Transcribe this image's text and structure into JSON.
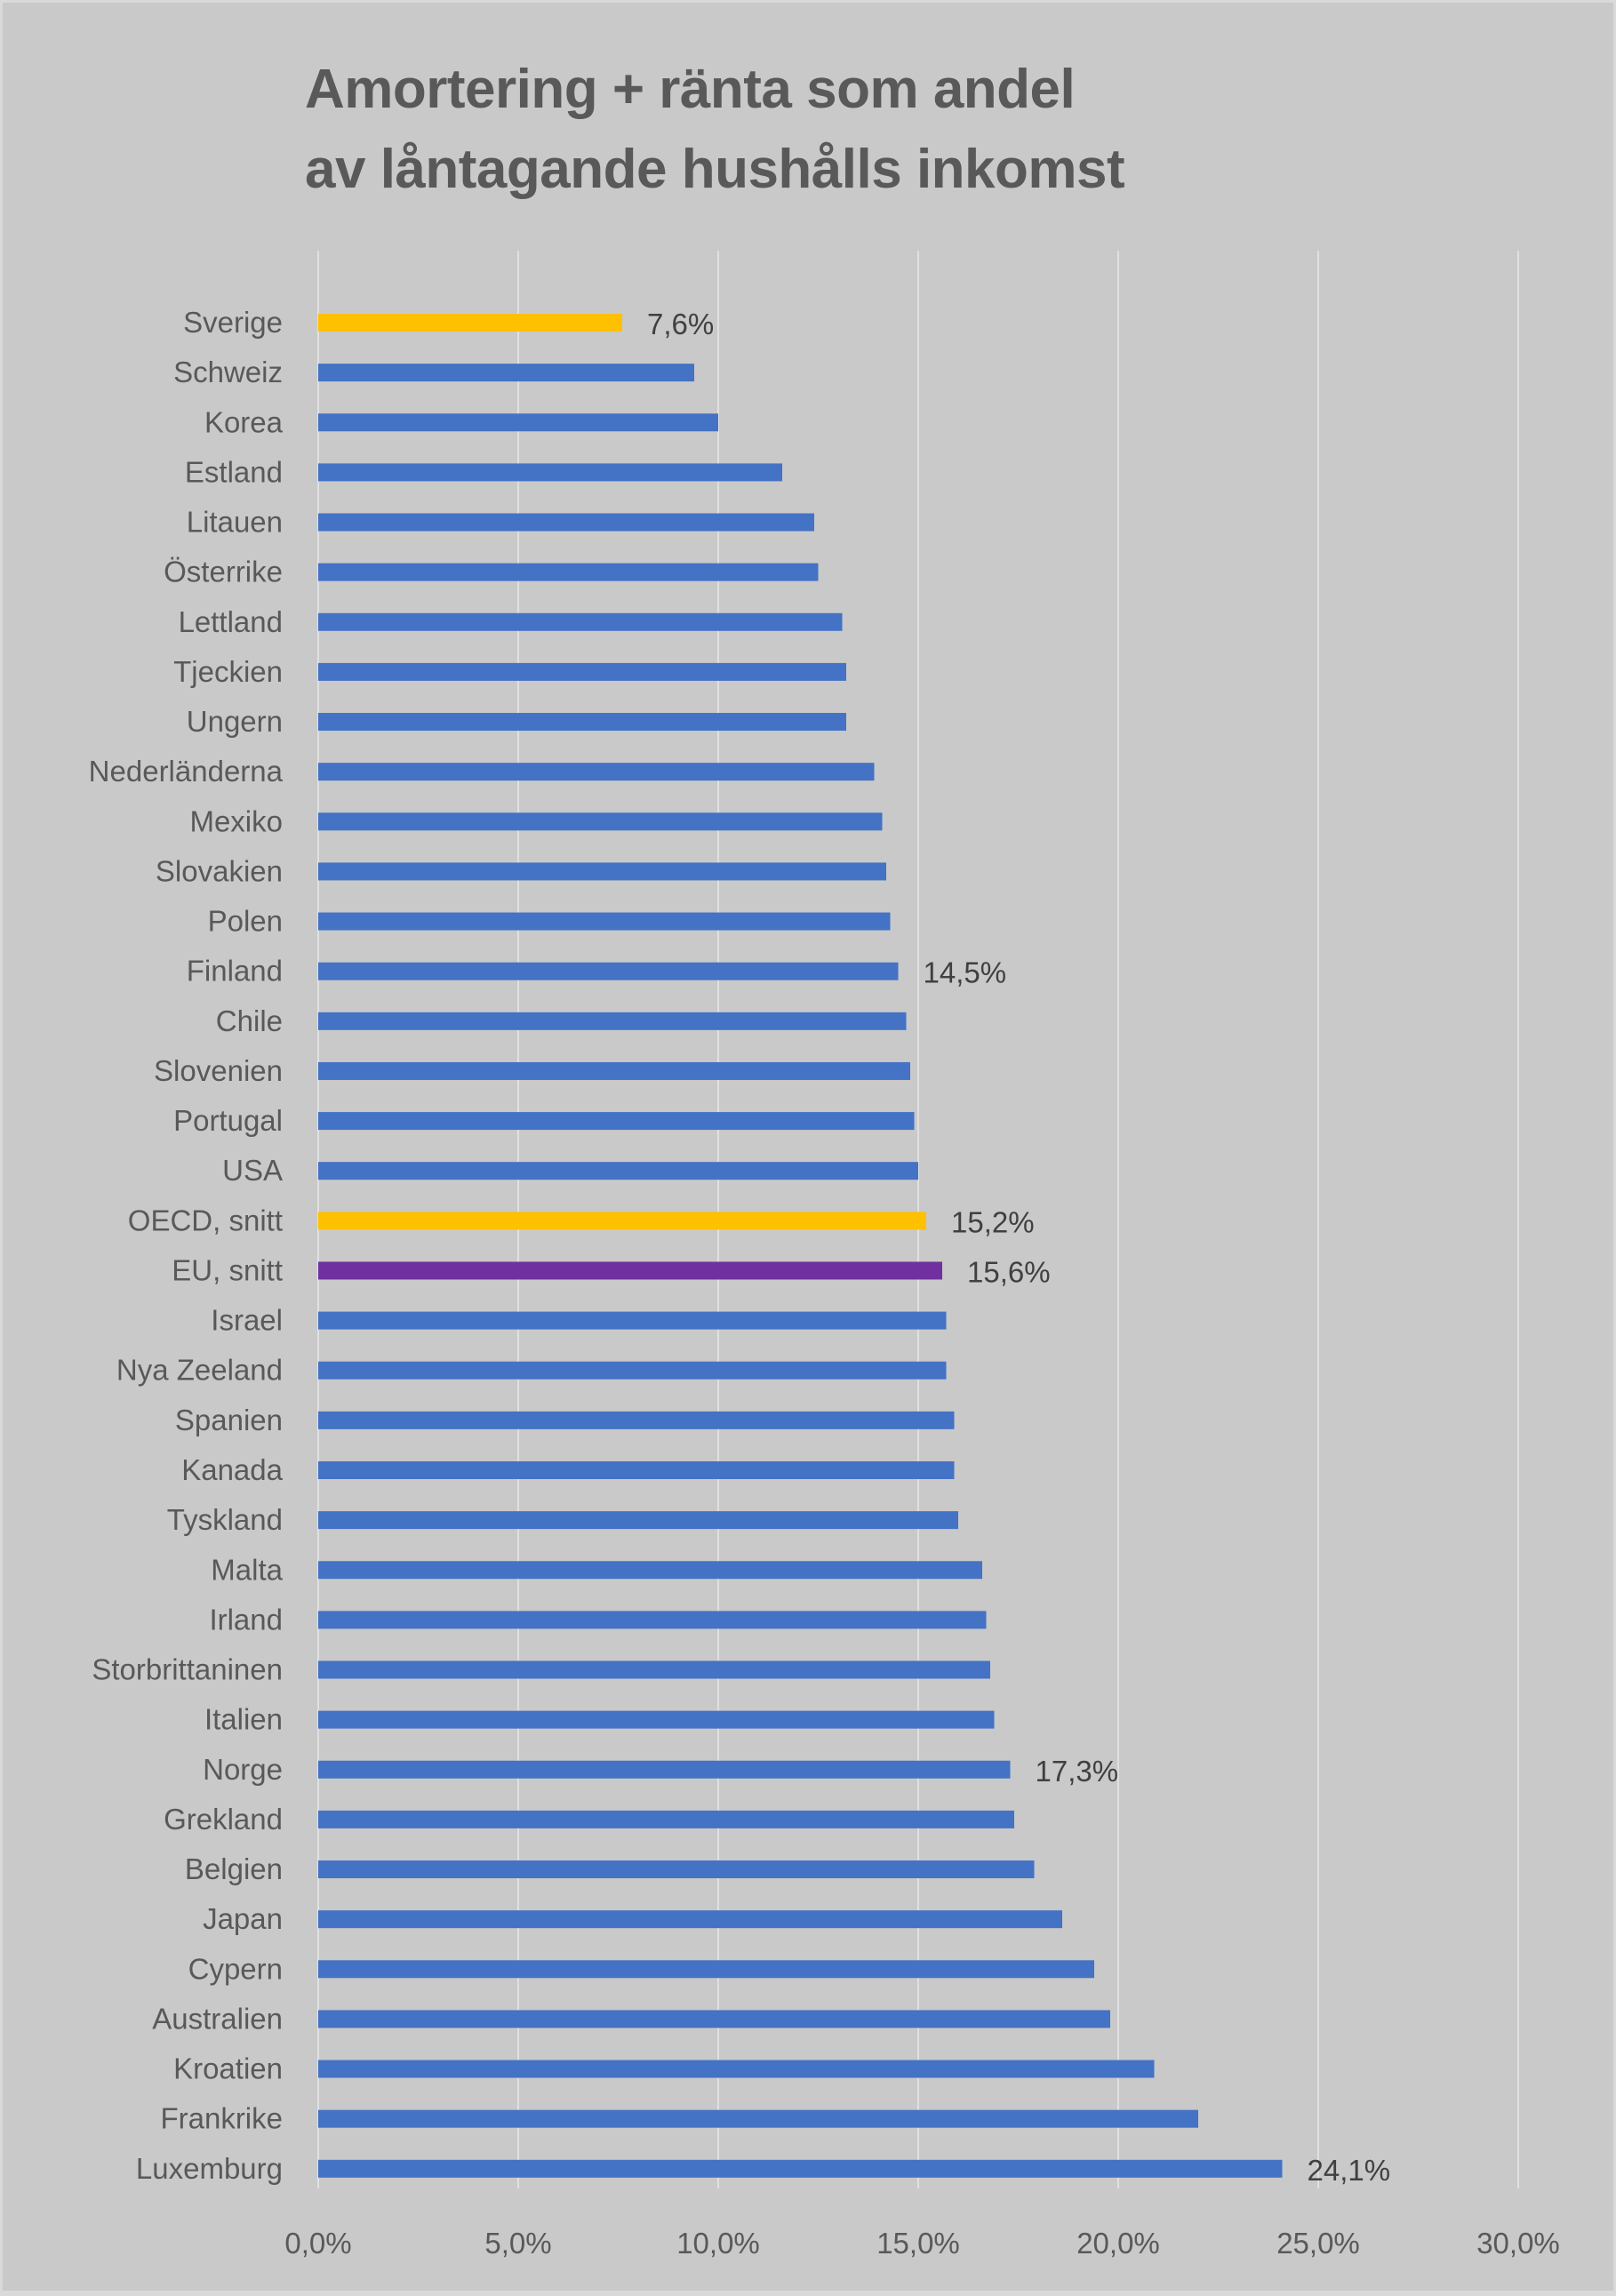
{
  "chart_data": {
    "type": "bar",
    "orientation": "horizontal",
    "title": "Amortering + ränta som andel av låntagande hushålls inkomst",
    "title_lines": [
      "Amortering + ränta som andel",
      "av låntagande hushålls inkomst"
    ],
    "xlabel": "",
    "ylabel": "",
    "xlim": [
      0,
      30
    ],
    "x_ticks": [
      0,
      5,
      10,
      15,
      20,
      25,
      30
    ],
    "x_tick_labels": [
      "0,0%",
      "5,0%",
      "10,0%",
      "15,0%",
      "20,0%",
      "25,0%",
      "30,0%"
    ],
    "grid": "vertical",
    "legend": "none",
    "colors": {
      "default": "#4472C4",
      "highlight_yellow": "#FFC000",
      "highlight_purple": "#7030A0",
      "background": "#C9C9C9",
      "gridline": "#E0E0E0",
      "text": "#595959"
    },
    "categories": [
      "Sverige",
      "Schweiz",
      "Korea",
      "Estland",
      "Litauen",
      "Österrike",
      "Lettland",
      "Tjeckien",
      "Ungern",
      "Nederländerna",
      "Mexiko",
      "Slovakien",
      "Polen",
      "Finland",
      "Chile",
      "Slovenien",
      "Portugal",
      "USA",
      "OECD, snitt",
      "EU, snitt",
      "Israel",
      "Nya Zeeland",
      "Spanien",
      "Kanada",
      "Tyskland",
      "Malta",
      "Irland",
      "Storbrittaninen",
      "Italien",
      "Norge",
      "Grekland",
      "Belgien",
      "Japan",
      "Cypern",
      "Australien",
      "Kroatien",
      "Frankrike",
      "Luxemburg"
    ],
    "values": [
      7.6,
      9.4,
      10.0,
      11.6,
      12.4,
      12.5,
      13.1,
      13.2,
      13.2,
      13.9,
      14.1,
      14.2,
      14.3,
      14.5,
      14.7,
      14.8,
      14.9,
      15.0,
      15.2,
      15.6,
      15.7,
      15.7,
      15.9,
      15.9,
      16.0,
      16.6,
      16.7,
      16.8,
      16.9,
      17.3,
      17.4,
      17.9,
      18.6,
      19.4,
      19.8,
      20.9,
      22.0,
      24.1
    ],
    "bar_colors": [
      "highlight_yellow",
      "default",
      "default",
      "default",
      "default",
      "default",
      "default",
      "default",
      "default",
      "default",
      "default",
      "default",
      "default",
      "default",
      "default",
      "default",
      "default",
      "default",
      "highlight_yellow",
      "highlight_purple",
      "default",
      "default",
      "default",
      "default",
      "default",
      "default",
      "default",
      "default",
      "default",
      "default",
      "default",
      "default",
      "default",
      "default",
      "default",
      "default",
      "default",
      "default"
    ],
    "data_labels": [
      {
        "index": 0,
        "text": "7,6%"
      },
      {
        "index": 13,
        "text": "14,5%"
      },
      {
        "index": 18,
        "text": "15,2%"
      },
      {
        "index": 19,
        "text": "15,6%"
      },
      {
        "index": 29,
        "text": "17,3%"
      },
      {
        "index": 37,
        "text": "24,1%"
      }
    ]
  }
}
